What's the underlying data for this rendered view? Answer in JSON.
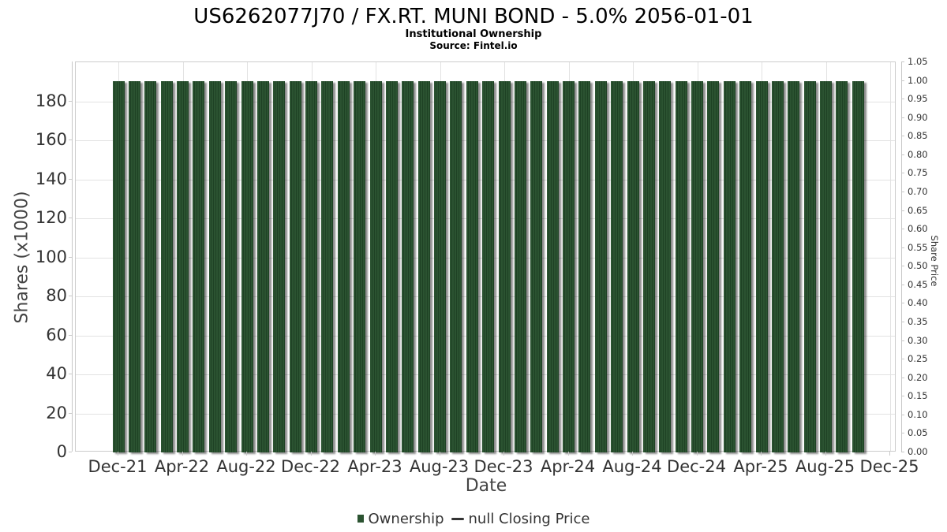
{
  "header": {
    "title": "US6262077J70 / FX.RT. MUNI BOND - 5.0% 2056-01-01",
    "subtitle": "Institutional Ownership",
    "source": "Source: Fintel.io"
  },
  "chart_data": {
    "type": "bar",
    "title": "US6262077J70 / FX.RT. MUNI BOND - 5.0% 2056-01-01",
    "subtitle": "Institutional Ownership",
    "source": "Source: Fintel.io",
    "xlabel": "Date",
    "ylabel_left": "Shares (x1000)",
    "ylabel_right": "Share Price",
    "grid": true,
    "legend_position": "bottom-center",
    "x_tick_labels": [
      "Dec-21",
      "Apr-22",
      "Aug-22",
      "Dec-22",
      "Apr-23",
      "Aug-23",
      "Dec-23",
      "Apr-24",
      "Aug-24",
      "Dec-24",
      "Apr-25",
      "Aug-25",
      "Dec-25"
    ],
    "y_left_ticks": [
      0,
      20,
      40,
      60,
      80,
      100,
      120,
      140,
      160,
      180
    ],
    "y_left_range": [
      0,
      200
    ],
    "y_right_tick_labels": [
      "0.00",
      "0.05",
      "0.10",
      "0.15",
      "0.20",
      "0.25",
      "0.30",
      "0.35",
      "0.40",
      "0.45",
      "0.50",
      "0.55",
      "0.60",
      "0.65",
      "0.70",
      "0.75",
      "0.80",
      "0.85",
      "0.90",
      "0.95",
      "1.00",
      "1.05"
    ],
    "y_right_range": [
      0,
      1.05
    ],
    "legend": [
      {
        "label": "Ownership",
        "marker": "square",
        "color": "#2b5331"
      },
      {
        "label": "null Closing Price",
        "marker": "line",
        "color": "#333333"
      }
    ],
    "series": [
      {
        "name": "Ownership",
        "type": "bar",
        "color": "#2b5331",
        "x": [
          "Dec-21",
          "Jan-22",
          "Feb-22",
          "Mar-22",
          "Apr-22",
          "May-22",
          "Jun-22",
          "Jul-22",
          "Aug-22",
          "Sep-22",
          "Oct-22",
          "Nov-22",
          "Dec-22",
          "Jan-23",
          "Feb-23",
          "Mar-23",
          "Apr-23",
          "May-23",
          "Jun-23",
          "Jul-23",
          "Aug-23",
          "Sep-23",
          "Oct-23",
          "Nov-23",
          "Dec-23",
          "Jan-24",
          "Feb-24",
          "Mar-24",
          "Apr-24",
          "May-24",
          "Jun-24",
          "Jul-24",
          "Aug-24",
          "Sep-24",
          "Oct-24",
          "Nov-24",
          "Dec-24",
          "Jan-25",
          "Feb-25",
          "Mar-25",
          "Apr-25",
          "May-25",
          "Jun-25",
          "Jul-25",
          "Aug-25",
          "Sep-25",
          "Oct-25"
        ],
        "values": [
          190.5,
          190.5,
          190.5,
          190.5,
          190.5,
          190.5,
          190.5,
          190.5,
          190.5,
          190.5,
          190.5,
          190.5,
          190.5,
          190.5,
          190.5,
          190.5,
          190.5,
          190.5,
          190.5,
          190.5,
          190.5,
          190.5,
          190.5,
          190.5,
          190.5,
          190.5,
          190.5,
          190.5,
          190.5,
          190.5,
          190.5,
          190.5,
          190.5,
          190.5,
          190.5,
          190.5,
          190.5,
          190.5,
          190.5,
          190.5,
          190.5,
          190.5,
          190.5,
          190.5,
          190.5,
          190.5,
          190.5
        ]
      },
      {
        "name": "null Closing Price",
        "type": "line",
        "color": "#333333",
        "values": []
      }
    ]
  }
}
